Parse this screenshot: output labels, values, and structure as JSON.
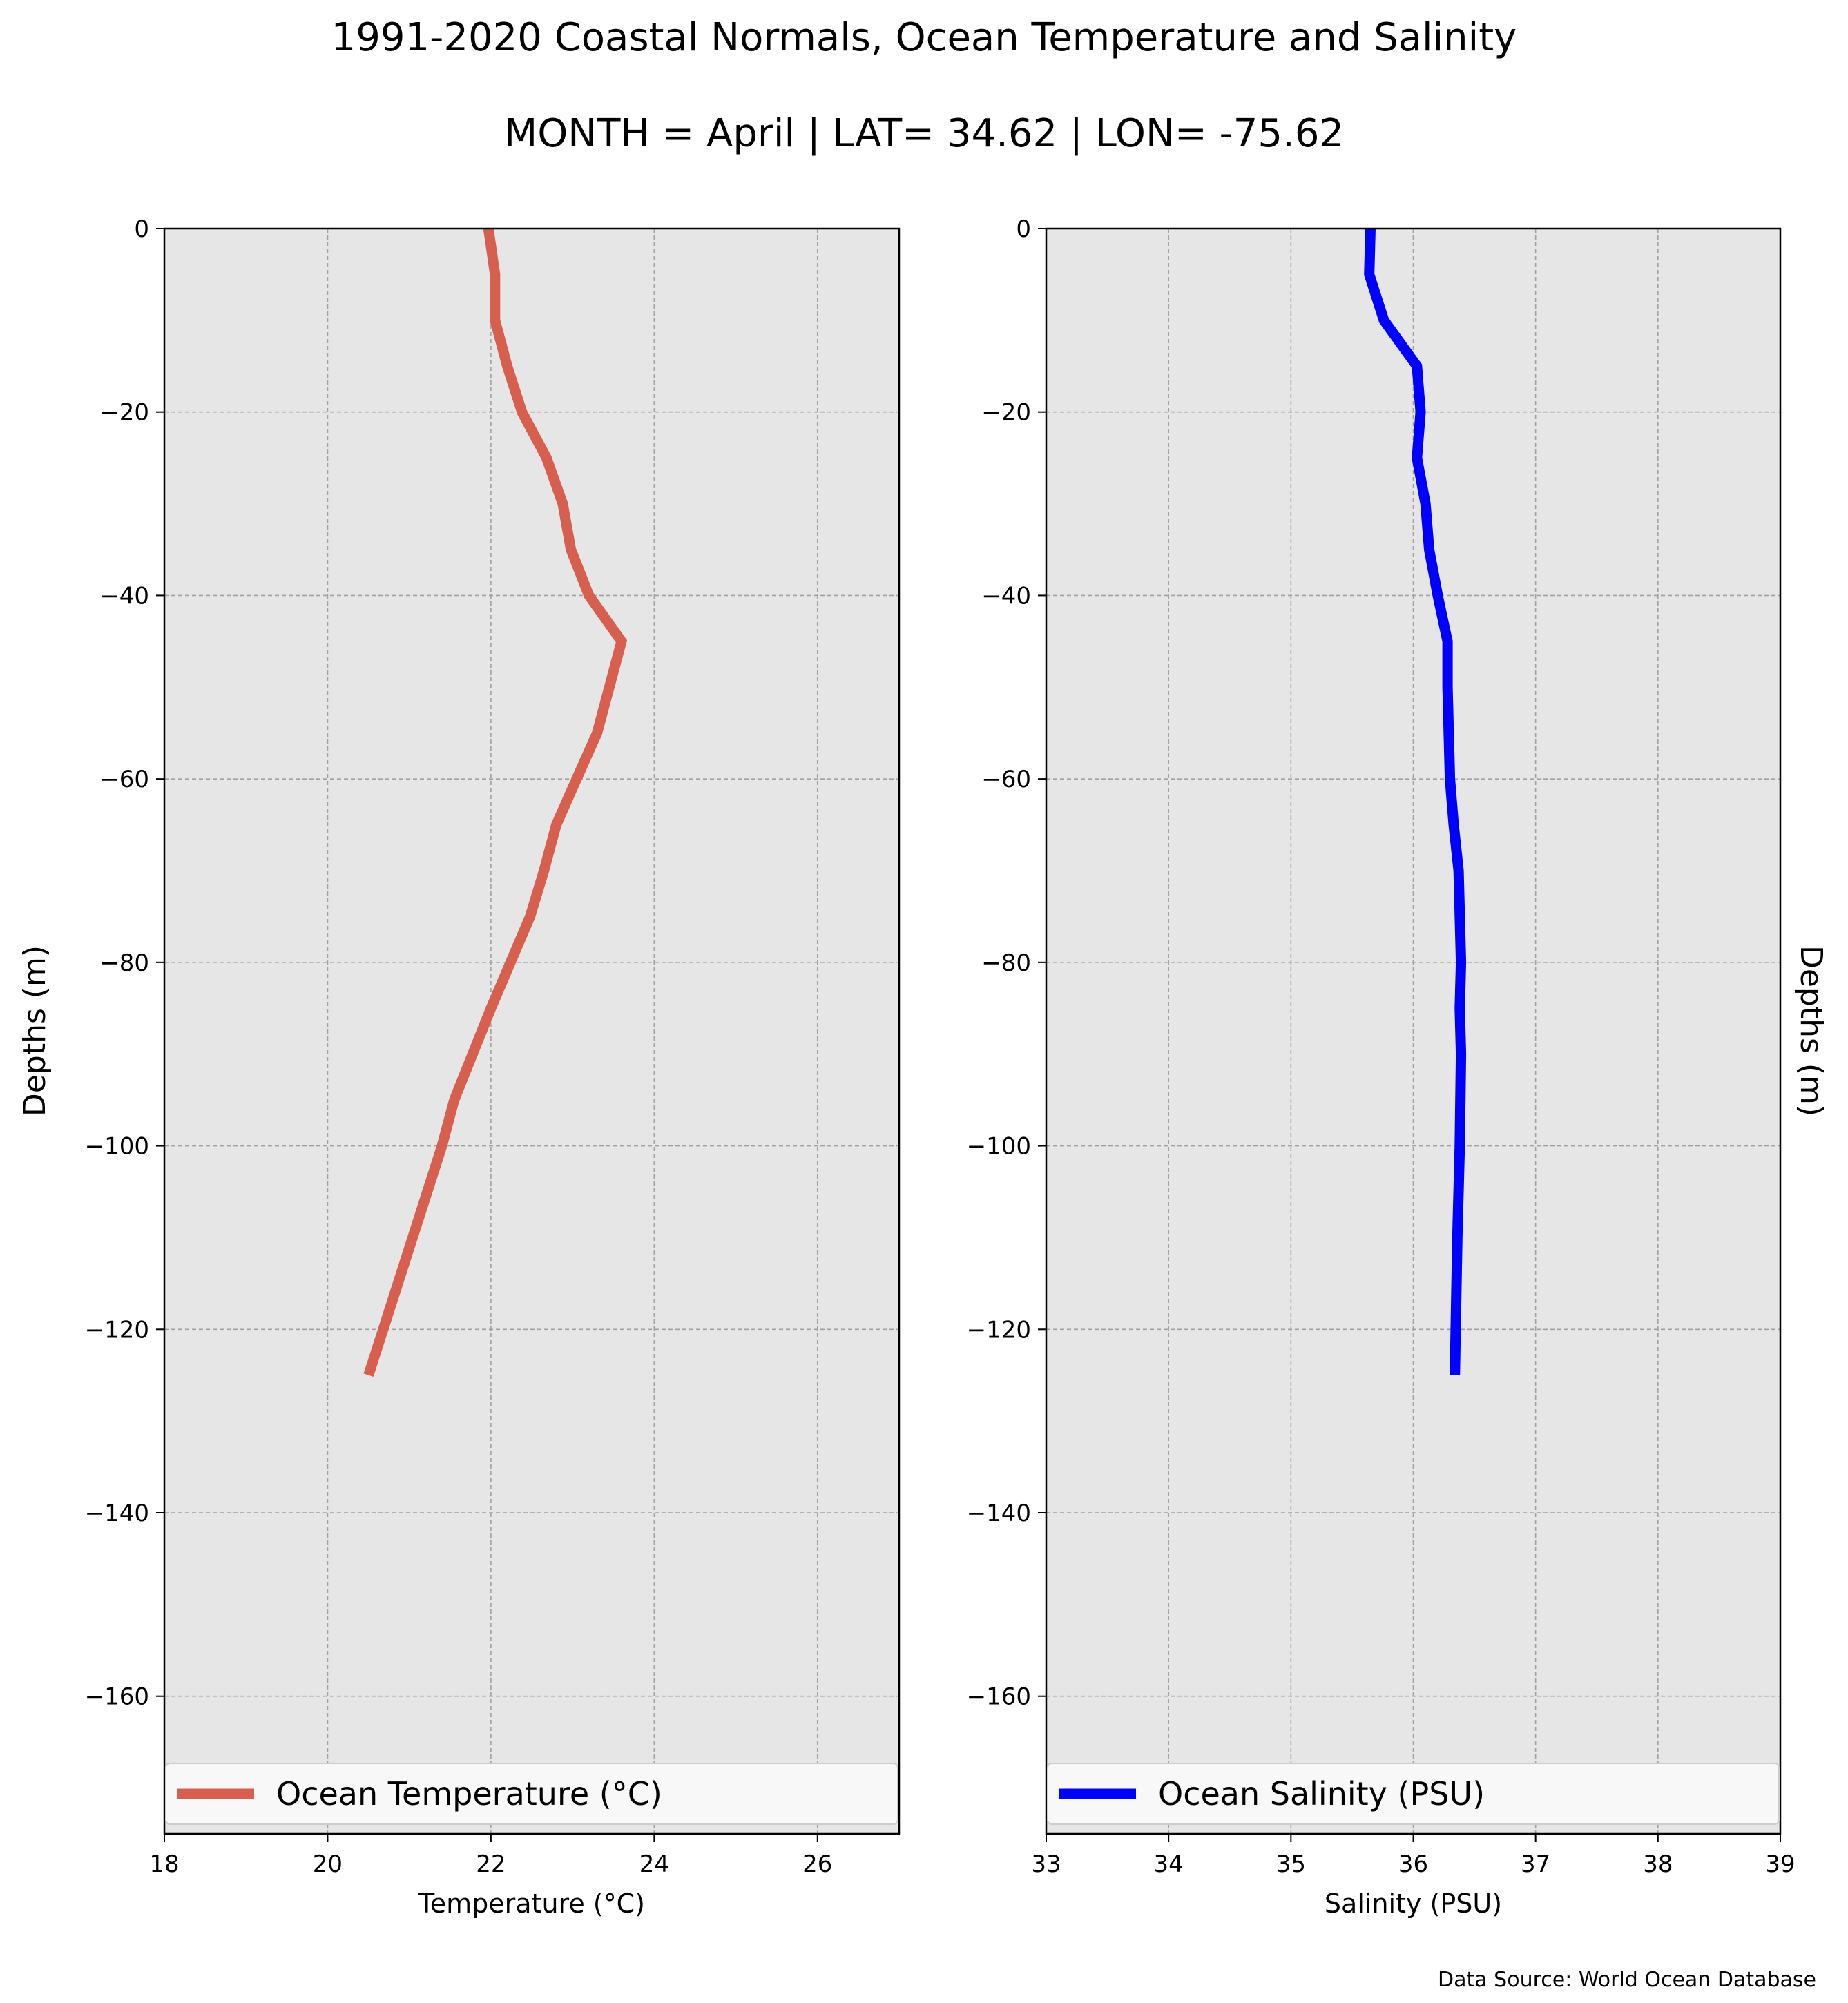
{
  "figure": {
    "title": "1991-2020 Coastal Normals, Ocean Temperature and Salinity",
    "subtitle": "MONTH = April | LAT= 34.62 | LON= -75.62",
    "source": "Data Source: World Ocean Database",
    "background": "#e6e6e6",
    "grid_color": "#a0a0a0"
  },
  "chart_data": [
    {
      "type": "line",
      "xlabel": "Temperature ($^\\circ$C)",
      "xlabel_display": "Temperature (°C)",
      "ylabel": "Depths (m)",
      "xlim": [
        18,
        27
      ],
      "ylim": [
        -175,
        0
      ],
      "xticks": [
        18,
        20,
        22,
        24,
        26
      ],
      "yticks": [
        0,
        -20,
        -40,
        -60,
        -80,
        -100,
        -120,
        -140,
        -160
      ],
      "ytick_labels": [
        "0",
        "−20",
        "−40",
        "−60",
        "−80",
        "−100",
        "−120",
        "−140",
        "−160"
      ],
      "grid": true,
      "legend_position": "lower center",
      "series": [
        {
          "name": "Ocean Temperature (°C)",
          "color": "#d65f4f",
          "x": [
            21.97,
            22.05,
            22.05,
            22.05,
            22.2,
            22.38,
            22.68,
            22.88,
            22.98,
            23.2,
            23.6,
            23.3,
            23.05,
            22.8,
            22.65,
            22.48,
            22.0,
            21.55,
            21.4,
            20.5
          ],
          "y": [
            0,
            -5,
            -10,
            -10,
            -15,
            -20,
            -25,
            -30,
            -35,
            -40,
            -45,
            -55,
            -60,
            -65,
            -70,
            -75,
            -85,
            -95,
            -100,
            -125
          ]
        }
      ]
    },
    {
      "type": "line",
      "xlabel": "Salinity (PSU)",
      "ylabel": "Depths (m)",
      "xlim": [
        33,
        39
      ],
      "ylim": [
        -175,
        0
      ],
      "xticks": [
        33,
        34,
        35,
        36,
        37,
        38,
        39
      ],
      "yticks": [
        0,
        -20,
        -40,
        -60,
        -80,
        -100,
        -120,
        -140,
        -160
      ],
      "ytick_labels": [
        "0",
        "−20",
        "−40",
        "−60",
        "−80",
        "−100",
        "−120",
        "−140",
        "−160"
      ],
      "grid": true,
      "legend_position": "lower center",
      "series": [
        {
          "name": "Ocean Salinity (PSU)",
          "color": "#0000ff",
          "x": [
            35.65,
            35.64,
            35.76,
            36.03,
            36.06,
            36.03,
            36.1,
            36.13,
            36.2,
            36.28,
            36.28,
            36.3,
            36.33,
            36.37,
            36.39,
            36.38,
            36.39,
            36.38,
            36.36,
            36.34
          ],
          "y": [
            0,
            -5,
            -10,
            -15,
            -20,
            -25,
            -30,
            -35,
            -40,
            -45,
            -50,
            -60,
            -65,
            -70,
            -80,
            -85,
            -90,
            -100,
            -110,
            -125
          ]
        }
      ]
    }
  ]
}
